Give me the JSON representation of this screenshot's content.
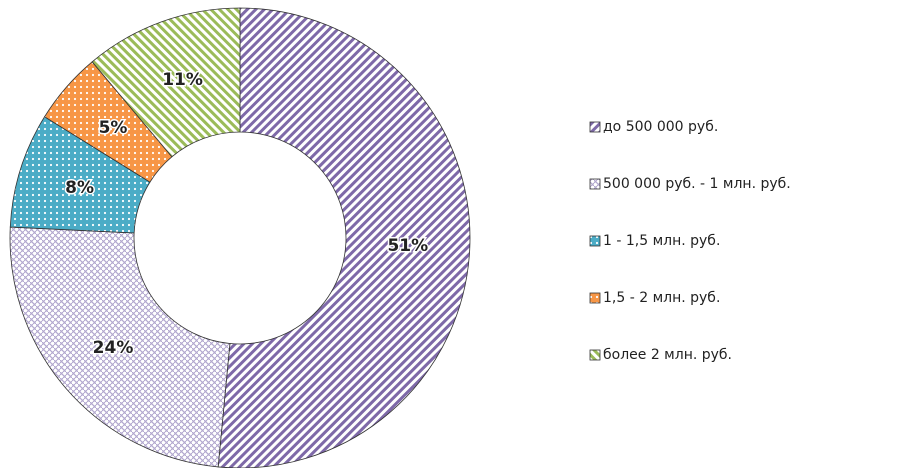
{
  "chart_data": {
    "type": "donut",
    "categories": [
      "до 500 000 руб.",
      "500 000 руб. - 1 млн. руб.",
      "1 - 1,5 млн. руб.",
      "1,5 - 2 млн. руб.",
      "более 2 млн. руб."
    ],
    "values": [
      51,
      24,
      8,
      5,
      11
    ],
    "value_labels": [
      "51%",
      "24%",
      "8%",
      "5%",
      "11%"
    ],
    "colors": [
      "#7e69a8",
      "#b3a8cf",
      "#4bacc6",
      "#f79646",
      "#9bbb59"
    ],
    "legend": "right"
  }
}
